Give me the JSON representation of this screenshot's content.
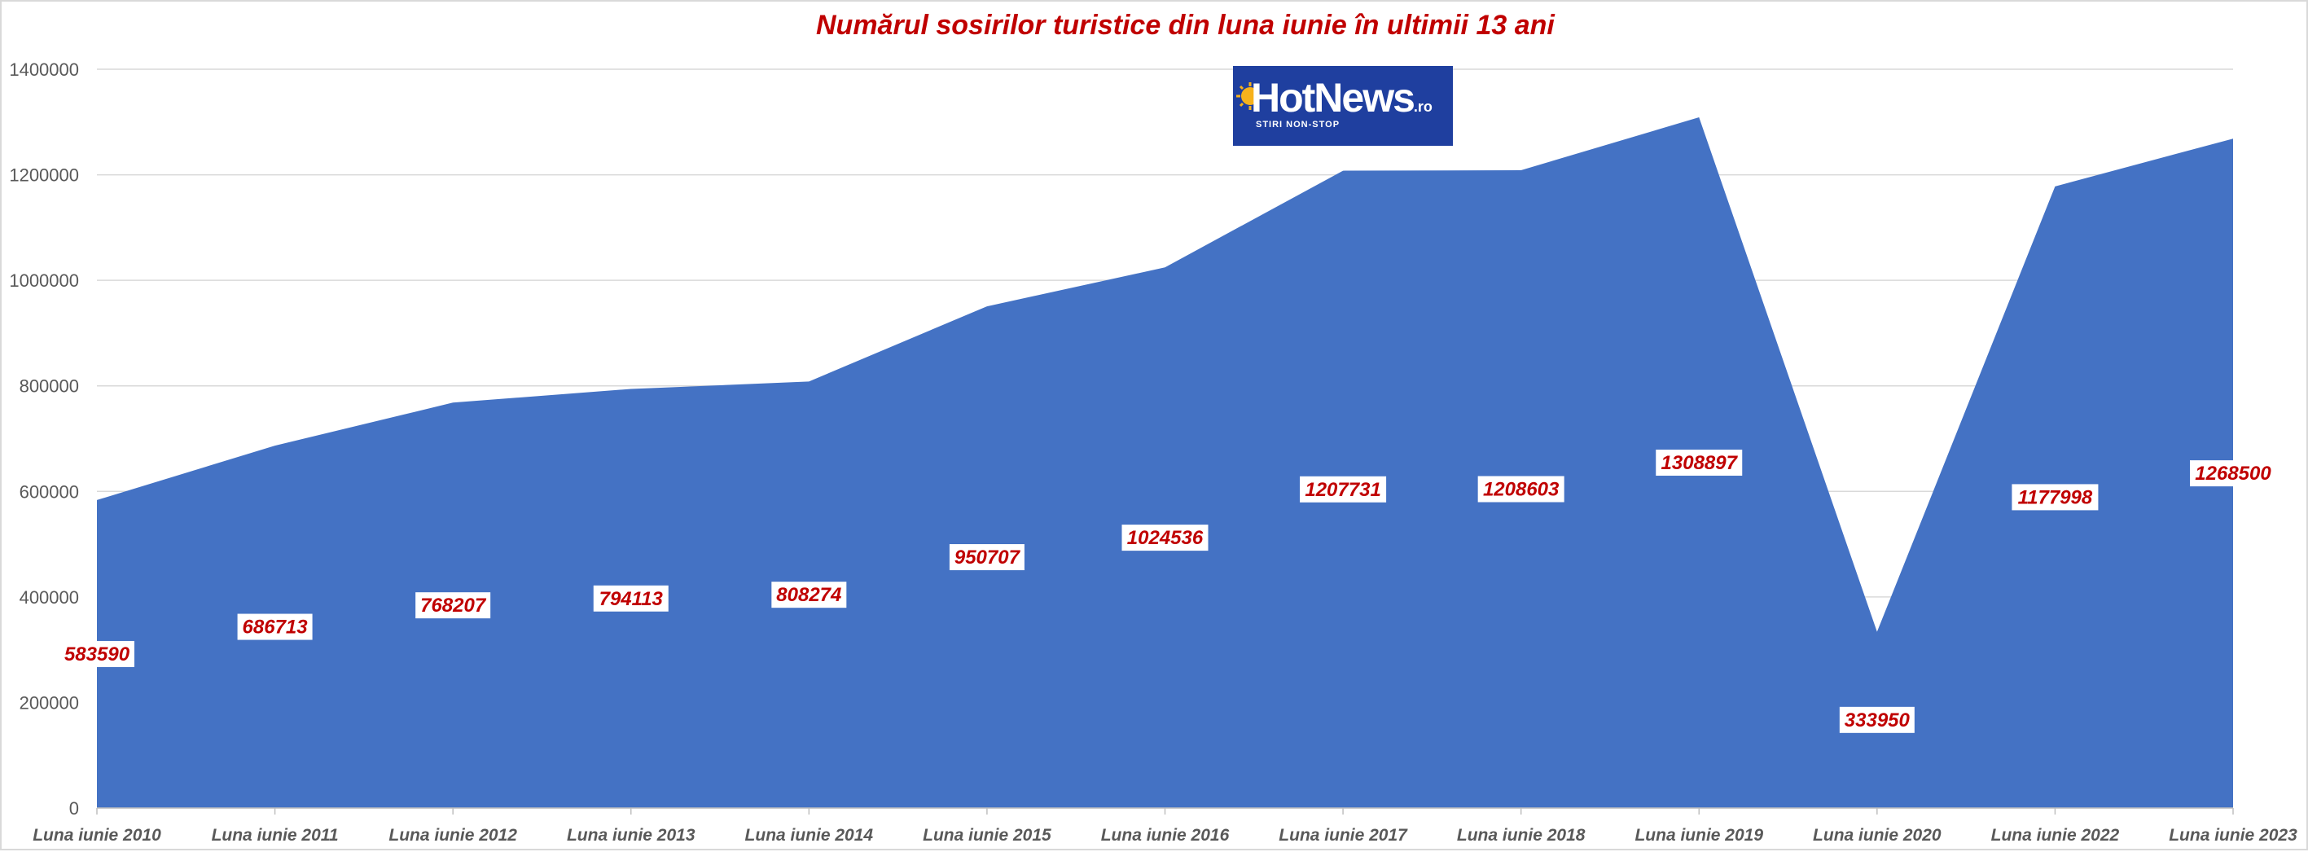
{
  "chart_data": {
    "type": "area",
    "title": "Numărul sosirilor turistice din luna iunie în ultimii 13 ani",
    "categories": [
      "Luna iunie 2010",
      "Luna iunie 2011",
      "Luna iunie 2012",
      "Luna iunie 2013",
      "Luna iunie 2014",
      "Luna iunie 2015",
      "Luna iunie 2016",
      "Luna iunie 2017",
      "Luna iunie 2018",
      "Luna iunie 2019",
      "Luna iunie 2020",
      "Luna iunie 2022",
      "Luna iunie 2023"
    ],
    "values": [
      583590,
      686713,
      768207,
      794113,
      808274,
      950707,
      1024536,
      1207731,
      1208603,
      1308897,
      333950,
      1177998,
      1268500
    ],
    "data_labels": [
      "583590",
      "686713",
      "768207",
      "794113",
      "808274",
      "950707",
      "1024536",
      "1207731",
      "1208603",
      "1308897",
      "333950",
      "1177998",
      "1268500"
    ],
    "ylim": [
      0,
      1400000
    ],
    "yticks": [
      0,
      200000,
      400000,
      600000,
      800000,
      1000000,
      1200000,
      1400000
    ],
    "ytick_labels": [
      "0",
      "200000",
      "400000",
      "600000",
      "800000",
      "1000000",
      "1200000",
      "1400000"
    ],
    "xlabel": "",
    "ylabel": "",
    "grid": true,
    "legend": "none",
    "colors": {
      "area": "#4472c4",
      "data_label": "#c00000",
      "title": "#c00000",
      "axis_text": "#595959",
      "grid": "#d9d9d9"
    }
  },
  "logo": {
    "name": "HotNews",
    "suffix": ".ro",
    "tagline": "STIRI NON-STOP",
    "color": "#1f3f9f"
  }
}
